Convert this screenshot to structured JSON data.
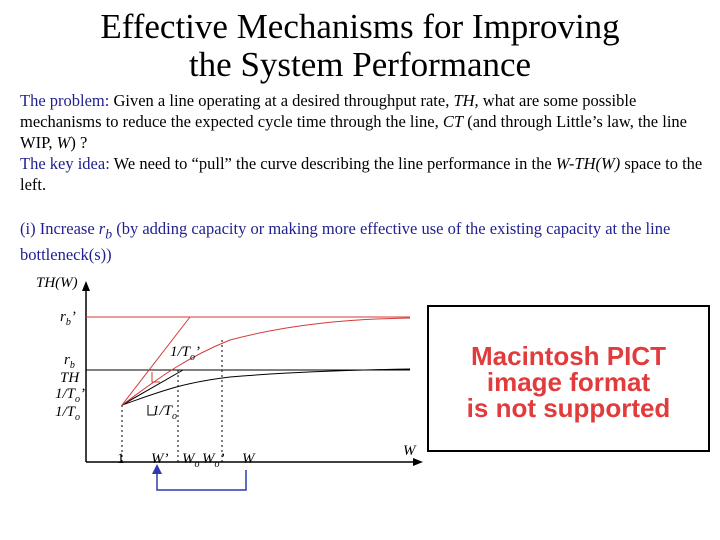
{
  "title": {
    "line1": "Effective Mechanisms for Improving",
    "line2": "the System Performance"
  },
  "problem": {
    "label": "The problem:",
    "text_a": " Given a line operating at a desired throughput rate, ",
    "th": "TH,",
    "text_b": " what are some possible mechanisms to reduce the expected cycle time through the line, ",
    "ct": "CT",
    "text_c": " (and through Little’s law, the line WIP, ",
    "w": "W",
    "text_d": ") ?"
  },
  "key_idea": {
    "label": "The key idea:",
    "text_a": " We need to “pull” the curve describing the line performance in the ",
    "space": "W-TH(W)",
    "text_b": " space to the left."
  },
  "item_i": {
    "prefix": "(i) Increase ",
    "var": "r",
    "var_sub": "b",
    "text": " (by adding capacity or making more effective use of the existing capacity at the line bottleneck(s))"
  },
  "graph_labels": {
    "y_axis": "TH(W)",
    "rb_prime": "r",
    "rb_prime_sub": "b",
    "rb_prime_suffix": "’",
    "rb": "r",
    "rb_sub": "b",
    "th": "TH",
    "inv_to_prime_left": "1/T",
    "inv_to_prime_left_sub": "o",
    "inv_to_prime_left_suffix": "’",
    "inv_to_left": "1/T",
    "inv_to_left_sub": "o",
    "slope_prime": "1/T",
    "slope_prime_sub": "o",
    "slope_prime_suffix": "’",
    "slope": "1/T",
    "slope_sub": "o",
    "x_one": "1",
    "x_w_prime": "W’",
    "x_wo": "W",
    "x_wo_sub": "o",
    "x_wo_prime": "W",
    "x_wo_prime_sub": "o",
    "x_wo_prime_suffix": "’",
    "x_w": "W",
    "x_axis": "W"
  },
  "pict_placeholder": "Macintosh PICT\nimage format\nis not supported",
  "colors": {
    "heading_blue": "#1f1f8f",
    "red_curve": "#d23a3a",
    "pict_red": "#e23b3b",
    "arrow_blue": "#2b3bb0"
  }
}
